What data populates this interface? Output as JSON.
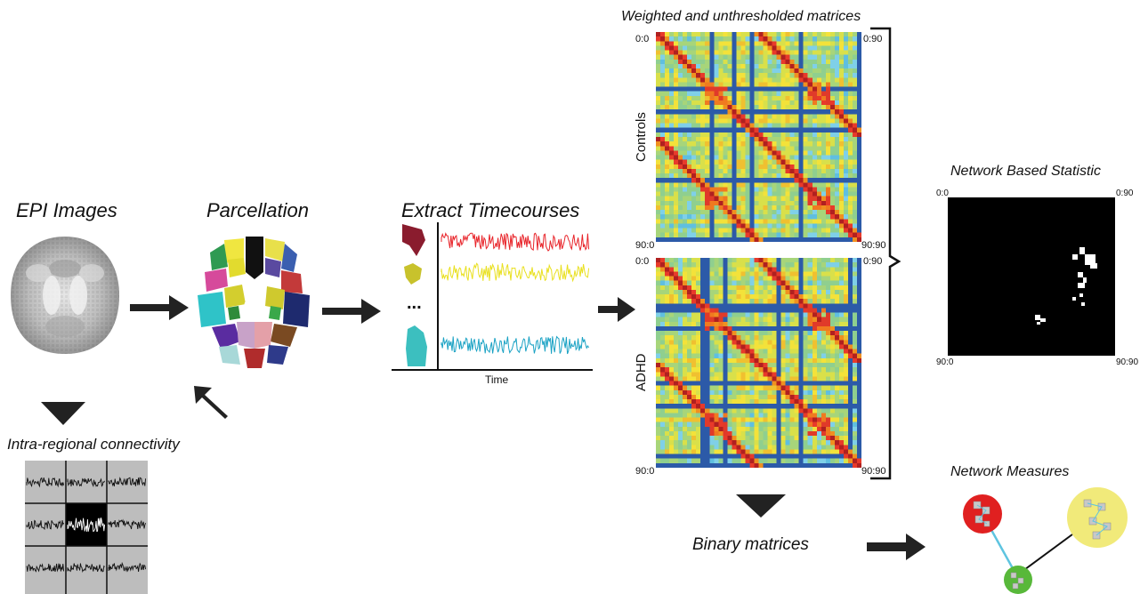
{
  "labels": {
    "epi_images": "EPI Images",
    "parcellation": "Parcellation",
    "extract_timecourses": "Extract Timecourses",
    "time_axis": "Time",
    "ellipsis": "...",
    "intra_regional": "Intra-regional connectivity",
    "weighted_title": "Weighted and unthresholded matrices",
    "controls": "Controls",
    "adhd": "ADHD",
    "binary_matrices": "Binary matrices",
    "nbs_title": "Network Based Statistic",
    "network_measures": "Network Measures"
  },
  "matrix_corners": {
    "top_left": "0:0",
    "top_right": "0:90",
    "bottom_left": "90:0",
    "bottom_right": "90:90"
  },
  "colors": {
    "timecourse_red": "#e8242a",
    "timecourse_yellow": "#e9e01f",
    "timecourse_cyan": "#1aa2c4",
    "region_maroon": "#8a1c2e",
    "region_olive": "#c8c22c",
    "region_teal": "#3cbfbf",
    "node_red": "#e02020",
    "node_yellow": "#f1ea7a",
    "node_green": "#58b83a",
    "edge_cyan": "#5ec4e0"
  }
}
